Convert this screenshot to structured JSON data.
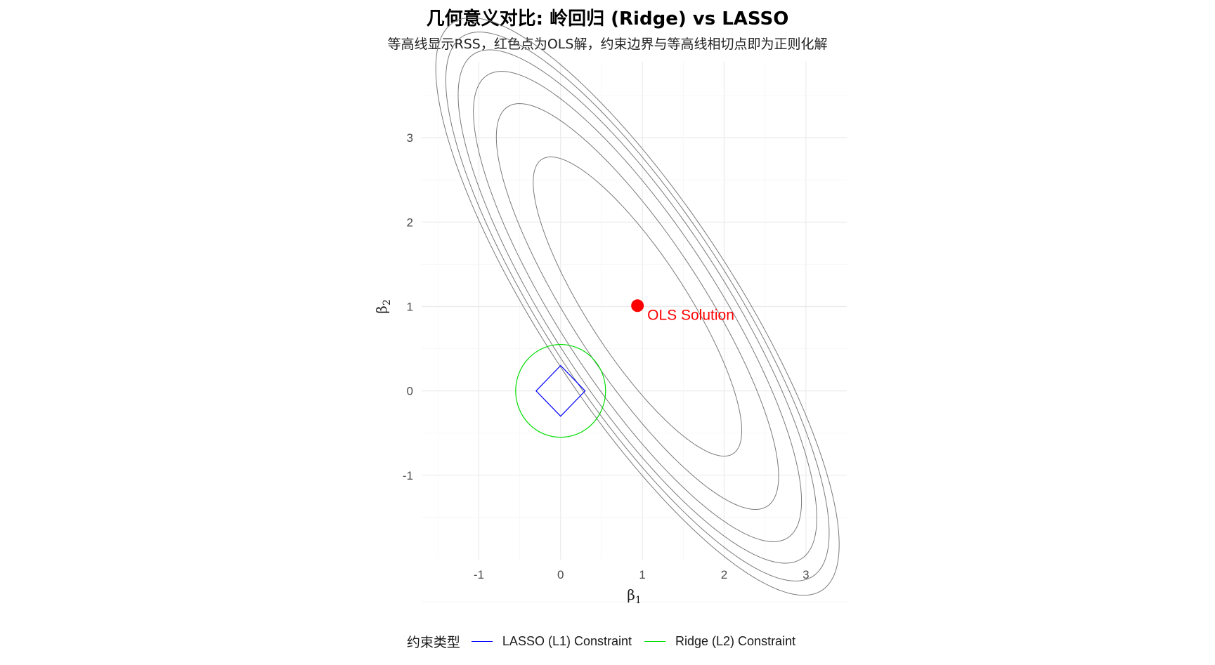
{
  "title": "几何意义对比: 岭回归 (Ridge) vs LASSO",
  "subtitle": "等高线显示RSS，红色点为OLS解，约束边界与等高线相切点即为正则化解",
  "chart_data": {
    "type": "contour",
    "xlabel": "β1",
    "ylabel": "β2",
    "xlim": [
      -1.7,
      3.5
    ],
    "ylim": [
      -2.0,
      3.9
    ],
    "x_ticks": [
      -1,
      0,
      1,
      2,
      3
    ],
    "y_ticks": [
      -1,
      0,
      1,
      2,
      3
    ],
    "x_tick_labels": [
      "-1",
      "0",
      "1",
      "2",
      "3"
    ],
    "y_tick_labels": [
      "-1",
      "0",
      "1",
      "2",
      "3"
    ],
    "grid": true,
    "contours": {
      "center": [
        0.94,
        1.0
      ],
      "angle_deg": -56,
      "color": "#7a7a7a",
      "levels": [
        {
          "semi_major": 2.1,
          "semi_minor": 0.6
        },
        {
          "semi_major": 2.85,
          "semi_minor": 0.8
        },
        {
          "semi_major": 3.3,
          "semi_minor": 0.95
        },
        {
          "semi_major": 3.6,
          "semi_minor": 1.05
        },
        {
          "semi_major": 3.85,
          "semi_minor": 1.12
        },
        {
          "semi_major": 4.05,
          "semi_minor": 1.18
        }
      ]
    },
    "ols_point": {
      "x": 0.94,
      "y": 1.01,
      "label": "OLS Solution",
      "color": "#ff0000"
    },
    "constraints": [
      {
        "name": "LASSO (L1) Constraint",
        "shape": "diamond",
        "t": 0.3,
        "color": "#0000ff"
      },
      {
        "name": "Ridge (L2) Constraint",
        "shape": "circle",
        "radius": 0.55,
        "color": "#00dd00"
      }
    ],
    "legend": {
      "title": "约束类型",
      "position": "bottom",
      "entries": [
        "LASSO (L1) Constraint",
        "Ridge (L2) Constraint"
      ]
    }
  }
}
